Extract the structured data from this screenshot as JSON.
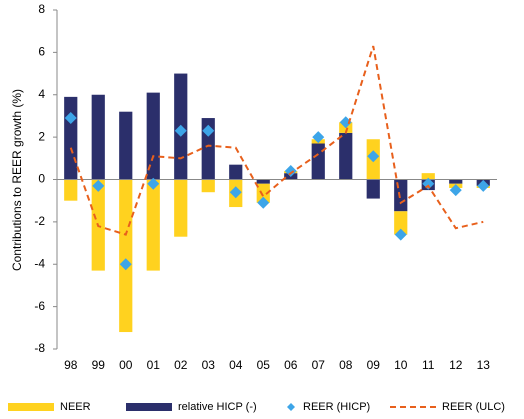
{
  "chart_data": {
    "type": "bar",
    "y_label": "Contributions to REER growth (%)",
    "categories": [
      "98",
      "99",
      "00",
      "01",
      "02",
      "03",
      "04",
      "05",
      "06",
      "07",
      "08",
      "09",
      "10",
      "11",
      "12",
      "13"
    ],
    "ylim": [
      -8,
      8
    ],
    "yticks": [
      -8,
      -6,
      -4,
      -2,
      0,
      2,
      4,
      6,
      8
    ],
    "series": [
      {
        "name": "NEER",
        "type": "bar",
        "color": "#FFD21F",
        "values": [
          -1.0,
          -4.3,
          -7.2,
          -4.3,
          -2.7,
          -0.6,
          -1.3,
          -0.9,
          0.1,
          0.2,
          0.5,
          1.9,
          -1.1,
          0.3,
          -0.2,
          -0.1
        ]
      },
      {
        "name": "relative HICP (-)",
        "type": "bar",
        "color": "#2B2F6B",
        "values": [
          3.9,
          4.0,
          3.2,
          4.1,
          5.0,
          2.9,
          0.7,
          -0.2,
          0.3,
          1.7,
          2.2,
          -0.9,
          -1.5,
          -0.5,
          -0.2,
          -0.3
        ]
      },
      {
        "name": "REER (HICP)",
        "type": "scatter",
        "color": "#3DA5E8",
        "values": [
          2.9,
          -0.3,
          -4.0,
          -0.2,
          2.3,
          2.3,
          -0.6,
          -1.1,
          0.4,
          2.0,
          2.7,
          1.1,
          -2.6,
          -0.2,
          -0.5,
          -0.3
        ]
      },
      {
        "name": "REER (ULC)",
        "type": "line",
        "color": "#E8601C",
        "values": [
          1.5,
          -2.2,
          -2.6,
          1.1,
          1.0,
          1.6,
          1.5,
          -0.8,
          0.3,
          1.2,
          2.2,
          6.3,
          -1.1,
          -0.3,
          -2.3,
          -2.0
        ]
      }
    ]
  }
}
